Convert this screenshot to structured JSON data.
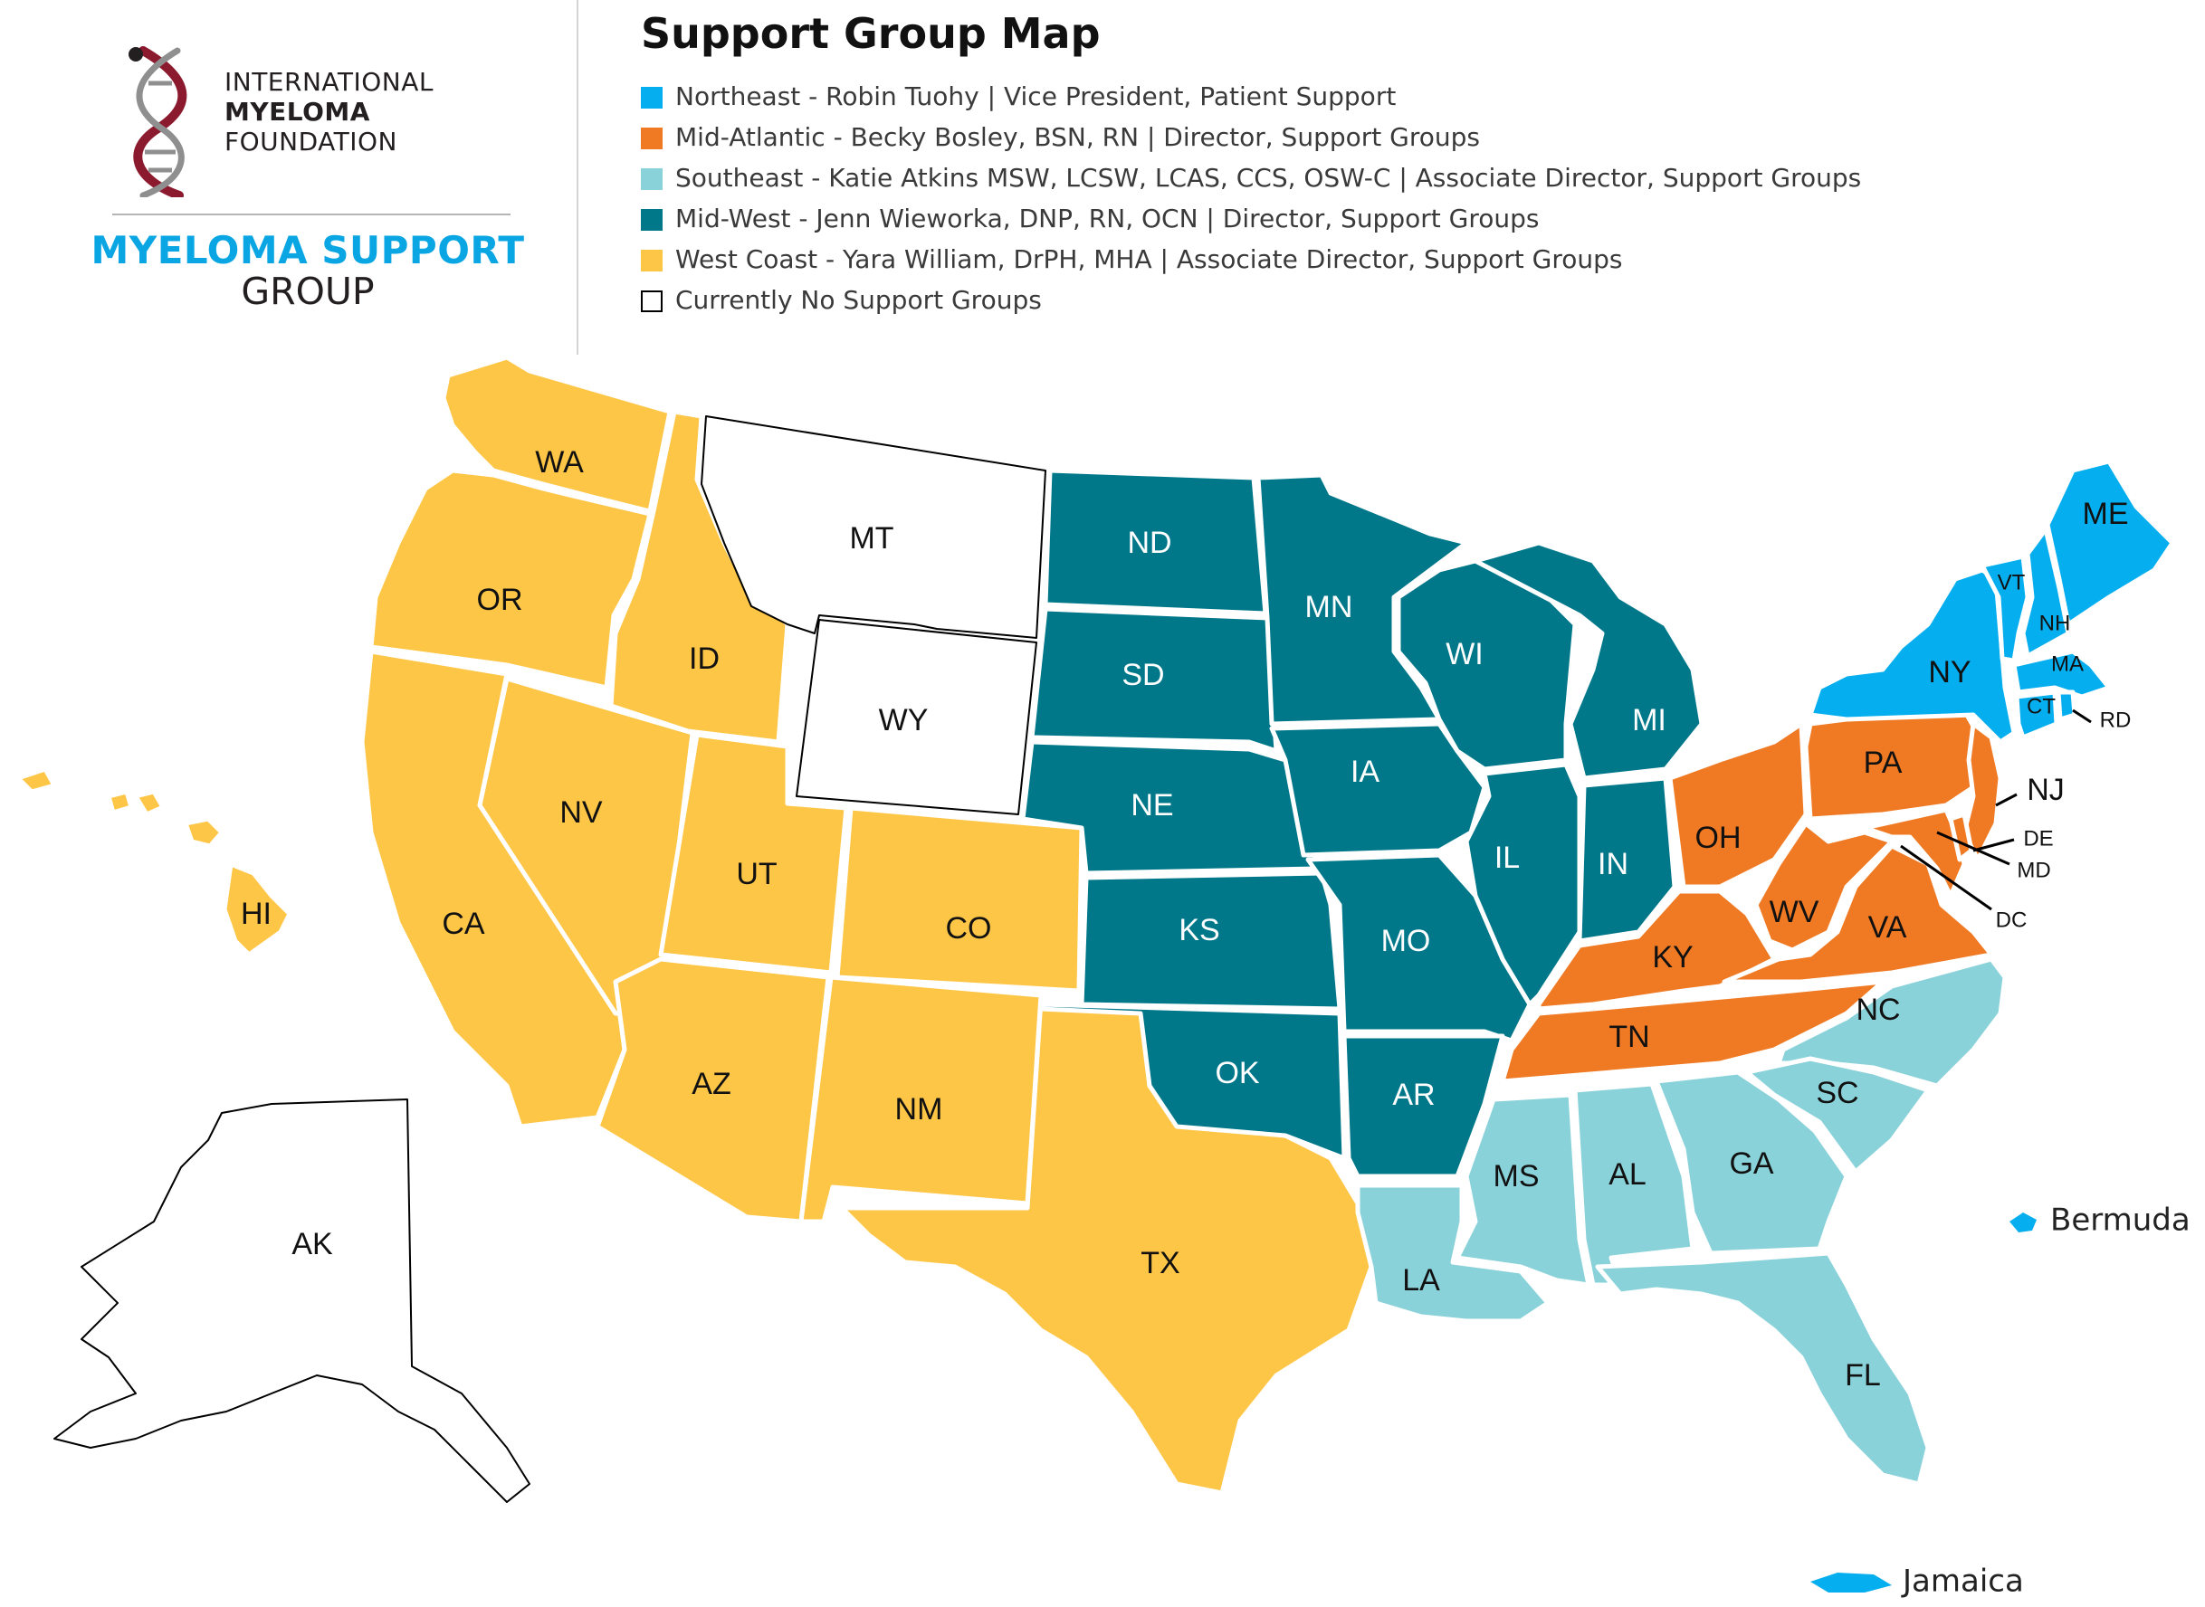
{
  "logo": {
    "line1": "INTERNATIONAL",
    "line2": "MYELOMA",
    "line3": "FOUNDATION",
    "program_title": "MYELOMA SUPPORT",
    "program_subtitle": "GROUP"
  },
  "title": "Support Group Map",
  "legend": [
    {
      "region": "northeast",
      "label": "Northeast - Robin Tuohy | Vice President, Patient Support",
      "color": "#05aeef"
    },
    {
      "region": "mid-atlantic",
      "label": "Mid-Atlantic - Becky Bosley, BSN, RN | Director, Support Groups",
      "color": "#f07a24"
    },
    {
      "region": "southeast",
      "label": "Southeast - Katie Atkins MSW, LCSW, LCAS, CCS, OSW-C | Associate Director, Support Groups",
      "color": "#8ad2d9"
    },
    {
      "region": "midwest",
      "label": "Mid-West - Jenn Wieworka, DNP, RN, OCN | Director, Support Groups",
      "color": "#00788a"
    },
    {
      "region": "west-coast",
      "label": "West Coast - Yara William, DrPH, MHA | Associate Director, Support Groups",
      "color": "#fec647"
    },
    {
      "region": "none",
      "label": "Currently No Support Groups",
      "color": "#ffffff"
    }
  ],
  "states": {
    "WA": "west-coast",
    "OR": "west-coast",
    "CA": "west-coast",
    "ID": "west-coast",
    "NV": "west-coast",
    "UT": "west-coast",
    "AZ": "west-coast",
    "CO": "west-coast",
    "NM": "west-coast",
    "TX": "west-coast",
    "HI": "west-coast",
    "MT": "none",
    "WY": "none",
    "AK": "none",
    "ND": "midwest",
    "SD": "midwest",
    "NE": "midwest",
    "KS": "midwest",
    "OK": "midwest",
    "MN": "midwest",
    "IA": "midwest",
    "MO": "midwest",
    "AR": "midwest",
    "WI": "midwest",
    "IL": "midwest",
    "MI": "midwest",
    "IN": "midwest",
    "OH": "mid-atlantic",
    "KY": "mid-atlantic",
    "TN": "mid-atlantic",
    "WV": "mid-atlantic",
    "VA": "mid-atlantic",
    "PA": "mid-atlantic",
    "NJ": "mid-atlantic",
    "DE": "mid-atlantic",
    "MD": "mid-atlantic",
    "DC": "mid-atlantic",
    "NC": "southeast",
    "SC": "southeast",
    "GA": "southeast",
    "FL": "southeast",
    "AL": "southeast",
    "MS": "southeast",
    "LA": "southeast",
    "NY": "northeast",
    "VT": "northeast",
    "NH": "northeast",
    "ME": "northeast",
    "MA": "northeast",
    "CT": "northeast",
    "RD": "northeast"
  },
  "territories": [
    {
      "name": "Bermuda",
      "region": "northeast"
    },
    {
      "name": "Jamaica",
      "region": "northeast"
    }
  ]
}
